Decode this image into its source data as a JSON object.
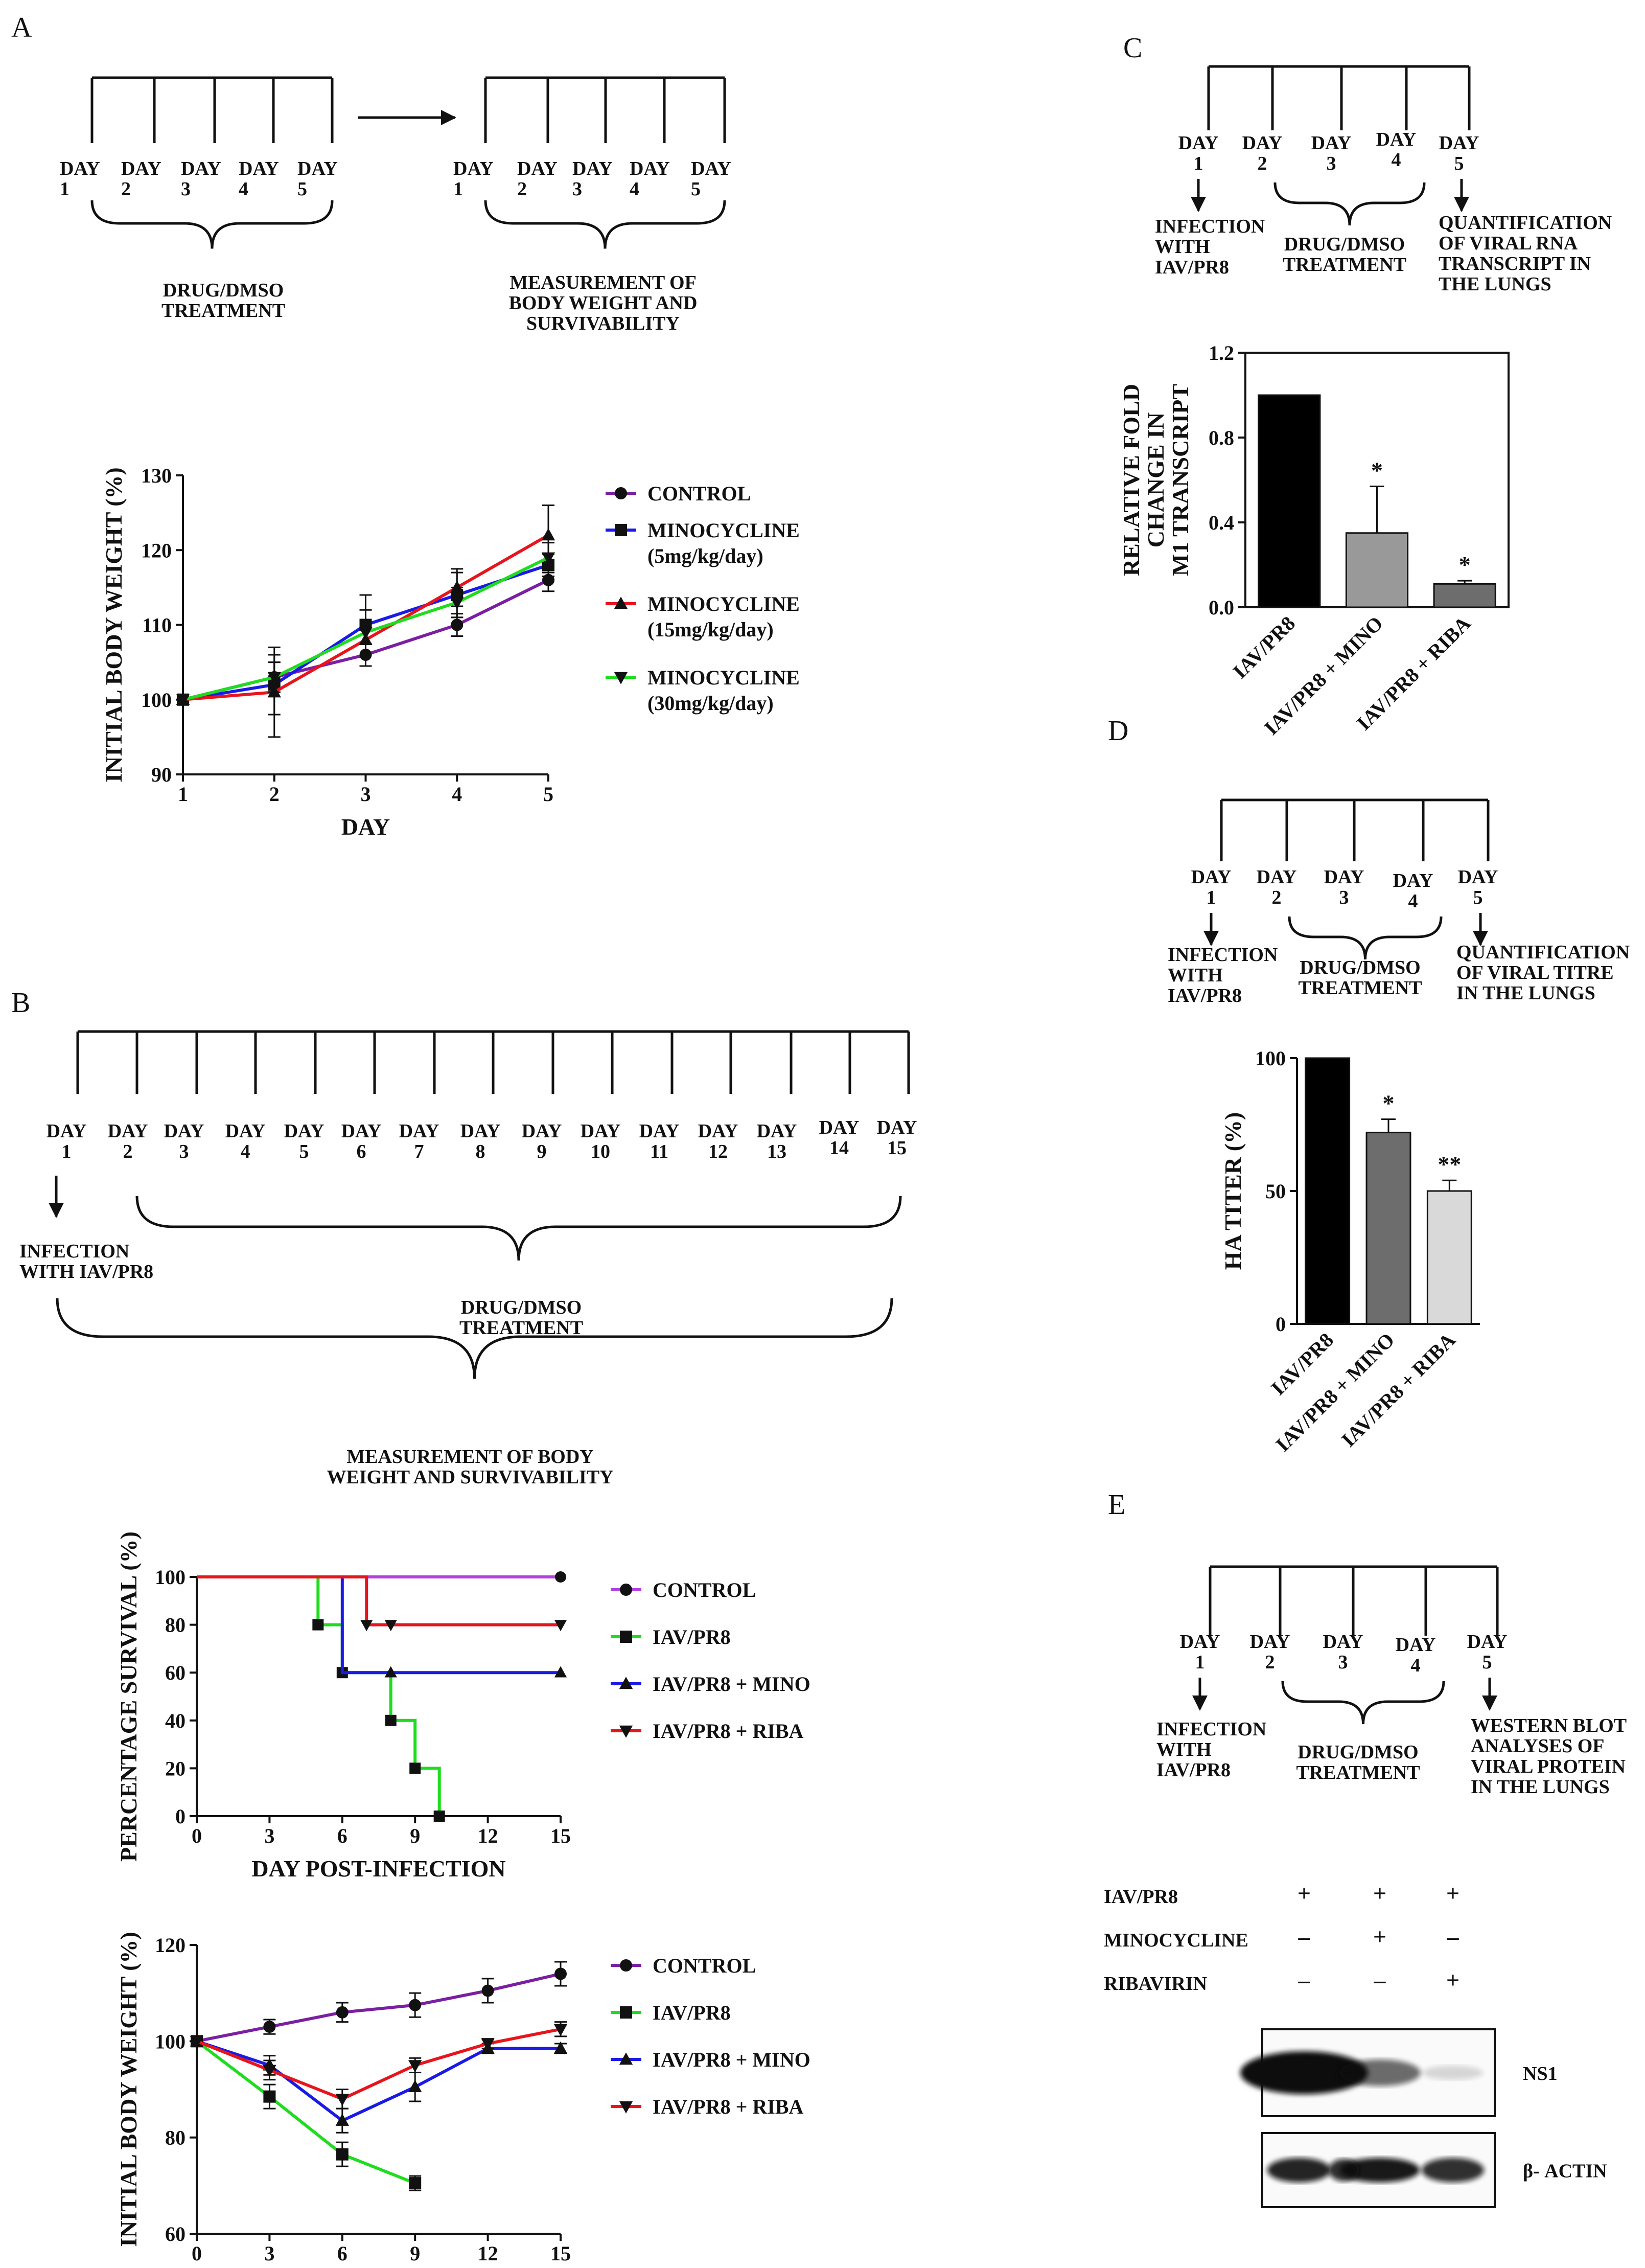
{
  "panels": {
    "A": "A",
    "B": "B",
    "C": "C",
    "D": "D",
    "E": "E"
  },
  "schematic_A": {
    "days1": [
      "DAY\n1",
      "DAY\n2",
      "DAY\n3",
      "DAY\n4",
      "DAY\n5"
    ],
    "days2": [
      "DAY\n1",
      "DAY\n2",
      "DAY\n3",
      "DAY\n4",
      "DAY\n5"
    ],
    "label1": "DRUG/DMSO\nTREATMENT",
    "label2": "MEASUREMENT OF\nBODY WEIGHT AND\nSURVIVABILITY"
  },
  "schematic_B": {
    "days": [
      "DAY\n1",
      "DAY\n2",
      "DAY\n3",
      "DAY\n4",
      "DAY\n5",
      "DAY\n6",
      "DAY\n7",
      "DAY\n8",
      "DAY\n9",
      "DAY\n10",
      "DAY\n11",
      "DAY\n12",
      "DAY\n13",
      "DAY\n14",
      "DAY\n15"
    ],
    "infection": "INFECTION\nWITH IAV/PR8",
    "treatment": "DRUG/DMSO\nTREATMENT",
    "measure": "MEASUREMENT OF BODY\nWEIGHT AND SURVIVABILITY"
  },
  "schematic_C": {
    "days": [
      "DAY\n1",
      "DAY\n2",
      "DAY\n3",
      "DAY\n4",
      "DAY\n5"
    ],
    "infection": "INFECTION\nWITH\nIAV/PR8",
    "treatment": "DRUG/DMSO\nTREATMENT",
    "quant": "QUANTIFICATION\nOF VIRAL RNA\nTRANSCRIPT IN\nTHE LUNGS"
  },
  "schematic_D": {
    "days": [
      "DAY\n1",
      "DAY\n2",
      "DAY\n3",
      "DAY\n4",
      "DAY\n5"
    ],
    "infection": "INFECTION\nWITH\nIAV/PR8",
    "treatment": "DRUG/DMSO\nTREATMENT",
    "quant": "QUANTIFICATION\nOF VIRAL TITRE\nIN THE LUNGS"
  },
  "schematic_E": {
    "days": [
      "DAY\n1",
      "DAY\n2",
      "DAY\n3",
      "DAY\n4",
      "DAY\n5"
    ],
    "infection": "INFECTION\nWITH\nIAV/PR8",
    "treatment": "DRUG/DMSO\nTREATMENT",
    "quant": "WESTERN BLOT\nANALYSES OF\nVIRAL PROTEIN\nIN THE LUNGS"
  },
  "western_blot": {
    "rows": [
      {
        "label": "IAV/PR8",
        "marks": [
          "+",
          "+",
          "+"
        ]
      },
      {
        "label": "MINOCYCLINE",
        "marks": [
          "–",
          "+",
          "–"
        ]
      },
      {
        "label": "RIBAVIRIN",
        "marks": [
          "–",
          "–",
          "+"
        ]
      }
    ],
    "bands": [
      {
        "label": "NS1",
        "intensity": [
          1.0,
          0.6,
          0.15
        ]
      },
      {
        "label": "β- ACTIN",
        "intensity": [
          0.9,
          0.95,
          0.85
        ]
      }
    ]
  },
  "colors": {
    "purple": "#7b1fa2",
    "green": "#1fdc1f",
    "blue": "#1a1ae6",
    "red": "#e8141c",
    "black": "#000000",
    "grey": "#999999",
    "darkgrey": "#6d6d6d",
    "lightgrey": "#d9d9d9"
  },
  "chart_data": [
    {
      "id": "A-weight",
      "type": "line",
      "xlabel": "DAY",
      "ylabel": "INITIAL BODY WEIGHT (%)",
      "xlim": [
        1,
        5
      ],
      "ylim": [
        90,
        130
      ],
      "xticks": [
        1,
        2,
        3,
        4,
        5
      ],
      "yticks": [
        90,
        100,
        110,
        120,
        130
      ],
      "x": [
        1,
        2,
        3,
        4,
        5
      ],
      "series": [
        {
          "name": "CONTROL",
          "color": "#7b1fa2",
          "marker": "circle",
          "values": [
            100,
            103,
            106,
            110,
            116
          ],
          "err": [
            0,
            2,
            1.5,
            1.5,
            1.5
          ]
        },
        {
          "name": "MINOCYCLINE\n(5mg/kg/day)",
          "color": "#1a1ae6",
          "marker": "square",
          "values": [
            100,
            102,
            110,
            114,
            118
          ],
          "err": [
            0,
            4,
            4,
            3,
            1.5
          ]
        },
        {
          "name": "MINOCYCLINE\n(15mg/kg/day)",
          "color": "#e8141c",
          "marker": "triangle",
          "values": [
            100,
            101,
            108,
            115,
            122
          ],
          "err": [
            0,
            6,
            2,
            2.5,
            4
          ]
        },
        {
          "name": "MINOCYCLINE\n(30mg/kg/day)",
          "color": "#1fdc1f",
          "marker": "triangle-down",
          "values": [
            100,
            103,
            109,
            113,
            119
          ],
          "err": [
            0,
            2,
            3,
            2,
            2
          ]
        }
      ]
    },
    {
      "id": "B-survival",
      "type": "line",
      "step": true,
      "xlabel": "DAY POST-INFECTION",
      "ylabel": "PERCENTAGE SURVIVAL (%)",
      "xlim": [
        0,
        15
      ],
      "ylim": [
        0,
        100
      ],
      "xticks": [
        0,
        3,
        6,
        9,
        12,
        15
      ],
      "yticks": [
        0,
        20,
        40,
        60,
        80,
        100
      ],
      "series": [
        {
          "name": "CONTROL",
          "color": "#b23fe0",
          "marker": "circle",
          "points": [
            [
              0,
              100
            ],
            [
              15,
              100
            ]
          ],
          "markers": [
            [
              15,
              100
            ]
          ]
        },
        {
          "name": "IAV/PR8",
          "color": "#1fdc1f",
          "marker": "square",
          "points": [
            [
              0,
              100
            ],
            [
              5,
              100
            ],
            [
              5,
              80
            ],
            [
              6,
              80
            ],
            [
              6,
              60
            ],
            [
              8,
              60
            ],
            [
              8,
              40
            ],
            [
              9,
              40
            ],
            [
              9,
              20
            ],
            [
              10,
              20
            ],
            [
              10,
              0
            ]
          ],
          "markers": [
            [
              5,
              80
            ],
            [
              6,
              60
            ],
            [
              8,
              40
            ],
            [
              9,
              20
            ],
            [
              10,
              0
            ]
          ]
        },
        {
          "name": "IAV/PR8 + MINO",
          "color": "#1a1ae6",
          "marker": "triangle",
          "points": [
            [
              0,
              100
            ],
            [
              6,
              100
            ],
            [
              6,
              60
            ],
            [
              15,
              60
            ]
          ],
          "markers": [
            [
              8,
              60
            ],
            [
              15,
              60
            ]
          ]
        },
        {
          "name": "IAV/PR8 + RIBA",
          "color": "#e8141c",
          "marker": "triangle-down",
          "points": [
            [
              0,
              100
            ],
            [
              7,
              100
            ],
            [
              7,
              80
            ],
            [
              15,
              80
            ]
          ],
          "markers": [
            [
              7,
              80
            ],
            [
              8,
              80
            ],
            [
              15,
              80
            ]
          ]
        }
      ]
    },
    {
      "id": "B-weight",
      "type": "line",
      "xlabel": "DAY POST-INFECTION",
      "ylabel": "INITIAL BODY WEIGHT (%)",
      "xlim": [
        0,
        15
      ],
      "ylim": [
        60,
        120
      ],
      "xticks": [
        0,
        3,
        6,
        9,
        12,
        15
      ],
      "yticks": [
        60,
        80,
        100,
        120
      ],
      "series": [
        {
          "name": "CONTROL",
          "color": "#7b1fa2",
          "marker": "circle",
          "x": [
            0,
            3,
            6,
            9,
            12,
            15
          ],
          "values": [
            100,
            103,
            106,
            107.5,
            110.5,
            114
          ],
          "err": [
            0,
            1.5,
            2,
            2.5,
            2.5,
            2.5
          ]
        },
        {
          "name": "IAV/PR8",
          "color": "#1fdc1f",
          "marker": "square",
          "x": [
            0,
            3,
            6,
            9
          ],
          "values": [
            100,
            88.5,
            76.5,
            70.5
          ],
          "err": [
            0,
            2.5,
            2.5,
            1.5
          ]
        },
        {
          "name": "IAV/PR8 + MINO",
          "color": "#1a1ae6",
          "marker": "triangle",
          "x": [
            0,
            3,
            6,
            9,
            12,
            15
          ],
          "values": [
            100,
            95,
            83.5,
            90.5,
            98.5,
            98.5
          ],
          "err": [
            0,
            2,
            2.5,
            3,
            1,
            1
          ]
        },
        {
          "name": "IAV/PR8 + RIBA",
          "color": "#e8141c",
          "marker": "triangle-down",
          "x": [
            0,
            3,
            6,
            9,
            12,
            15
          ],
          "values": [
            100,
            94,
            88,
            95,
            99.5,
            102.5
          ],
          "err": [
            0,
            2,
            2,
            1.5,
            1,
            1.5
          ]
        }
      ]
    },
    {
      "id": "C-m1",
      "type": "bar",
      "ylabel": "RELATIVE FOLD\nCHANGE IN\nM1 TRANSCRIPT",
      "ylim": [
        0,
        1.2
      ],
      "yticks": [
        0.0,
        0.4,
        0.8,
        1.2
      ],
      "categories": [
        "IAV/PR8",
        "IAV/PR8 + MINO",
        "IAV/PR8 + RIBA"
      ],
      "values": [
        1.0,
        0.35,
        0.11
      ],
      "err": [
        0,
        0.22,
        0.015
      ],
      "fills": [
        "#000000",
        "#999999",
        "#6d6d6d"
      ],
      "annotations": [
        "",
        "*",
        "*"
      ]
    },
    {
      "id": "D-ha",
      "type": "bar",
      "ylabel": "HA TITER (%)",
      "ylim": [
        0,
        100
      ],
      "yticks": [
        0,
        50,
        100
      ],
      "categories": [
        "IAV/PR8",
        "IAV/PR8 + MINO",
        "IAV/PR8 + RIBA"
      ],
      "values": [
        100,
        72,
        50
      ],
      "err": [
        0,
        5,
        4
      ],
      "fills": [
        "#000000",
        "#6d6d6d",
        "#d9d9d9"
      ],
      "annotations": [
        "",
        "*",
        "**"
      ]
    }
  ]
}
